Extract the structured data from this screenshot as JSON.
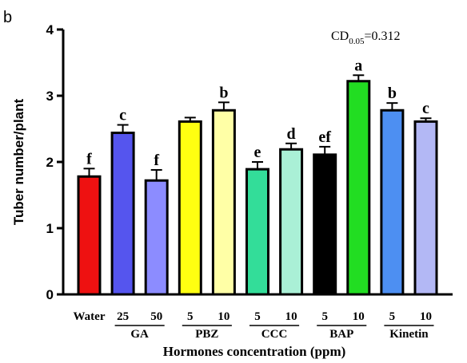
{
  "chart_data": {
    "type": "bar",
    "panel_label": "b",
    "ylabel": "Tuber number/plant",
    "xlabel": "Hormones concentration (ppm)",
    "ylim": [
      0,
      4
    ],
    "yticks": [
      "0",
      "1",
      "2",
      "3",
      "4"
    ],
    "annotation": {
      "prefix": "CD",
      "subscript": "0.05",
      "suffix": "=0.312"
    },
    "bars": [
      {
        "label": "Water",
        "value": 1.78,
        "error": 0.12,
        "letter": "f",
        "color": "#ee1111"
      },
      {
        "label": "25",
        "value": 2.44,
        "error": 0.12,
        "letter": "c",
        "color": "#5555ee"
      },
      {
        "label": "50",
        "value": 1.72,
        "error": 0.16,
        "letter": "f",
        "color": "#8c8cff"
      },
      {
        "label": "5",
        "value": 2.61,
        "error": 0.06,
        "letter": "",
        "color": "#ffff11"
      },
      {
        "label": "10",
        "value": 2.78,
        "error": 0.12,
        "letter": "b",
        "color": "#ffffa6"
      },
      {
        "label": "5",
        "value": 1.89,
        "error": 0.11,
        "letter": "e",
        "color": "#33dd99"
      },
      {
        "label": "10",
        "value": 2.19,
        "error": 0.09,
        "letter": "d",
        "color": "#aaf0d6"
      },
      {
        "label": "5",
        "value": 2.11,
        "error": 0.12,
        "letter": "ef",
        "color": "#000000"
      },
      {
        "label": "10",
        "value": 3.22,
        "error": 0.09,
        "letter": "a",
        "color": "#22dd22"
      },
      {
        "label": "5",
        "value": 2.78,
        "error": 0.11,
        "letter": "b",
        "color": "#4d8ff2"
      },
      {
        "label": "10",
        "value": 2.61,
        "error": 0.05,
        "letter": "c",
        "color": "#b3b8f5"
      }
    ],
    "groups": [
      {
        "label": "GA",
        "bars": [
          1,
          2
        ]
      },
      {
        "label": "PBZ",
        "bars": [
          3,
          4
        ]
      },
      {
        "label": "CCC",
        "bars": [
          5,
          6
        ]
      },
      {
        "label": "BAP",
        "bars": [
          7,
          8
        ]
      },
      {
        "label": "Kinetin",
        "bars": [
          9,
          10
        ]
      }
    ]
  }
}
